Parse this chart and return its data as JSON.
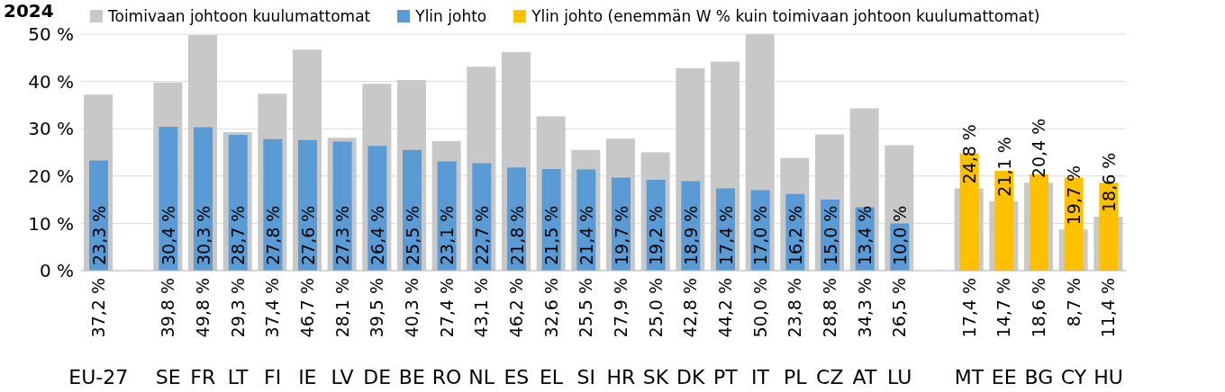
{
  "chart_data": {
    "type": "bar",
    "title": "2024",
    "categories": [
      "EU-27",
      null,
      "SE",
      "FR",
      "LT",
      "FI",
      "IE",
      "LV",
      "DE",
      "BE",
      "RO",
      "NL",
      "ES",
      "EL",
      "SI",
      "HR",
      "SK",
      "DK",
      "PT",
      "IT",
      "PL",
      "CZ",
      "AT",
      "LU",
      null,
      "MT",
      "EE",
      "BG",
      "CY",
      "HU"
    ],
    "series": [
      {
        "name": "Toimivaan johtoon kuulumattomat",
        "color": "#c8c8c8",
        "values": [
          37.2,
          null,
          39.8,
          49.8,
          29.3,
          37.4,
          46.7,
          28.1,
          39.5,
          40.3,
          27.4,
          43.1,
          46.2,
          32.6,
          25.5,
          27.9,
          25.0,
          42.8,
          44.2,
          50.0,
          23.8,
          28.8,
          34.3,
          26.5,
          null,
          17.4,
          14.7,
          18.6,
          8.7,
          11.4
        ],
        "value_labels": [
          "37,2 %",
          null,
          "39,8 %",
          "49,8 %",
          "29,3 %",
          "37,4 %",
          "46,7 %",
          "28,1 %",
          "39,5 %",
          "40,3 %",
          "27,4 %",
          "43,1 %",
          "46,2 %",
          "32,6 %",
          "25,5 %",
          "27,9 %",
          "25,0 %",
          "42,8 %",
          "44,2 %",
          "50,0 %",
          "23,8 %",
          "28,8 %",
          "34,3 %",
          "26,5 %",
          null,
          "17,4 %",
          "14,7 %",
          "18,6 %",
          "8,7 %",
          "11,4 %"
        ]
      },
      {
        "name": "Ylin johto",
        "color": "#5b9bd5",
        "values": [
          23.3,
          null,
          30.4,
          30.3,
          28.7,
          27.8,
          27.6,
          27.3,
          26.4,
          25.5,
          23.1,
          22.7,
          21.8,
          21.5,
          21.4,
          19.7,
          19.2,
          18.9,
          17.4,
          17.0,
          16.2,
          15.0,
          13.4,
          10.0,
          null,
          null,
          null,
          null,
          null,
          null
        ],
        "value_labels": [
          "23,3 %",
          null,
          "30,4 %",
          "30,3 %",
          "28,7 %",
          "27,8 %",
          "27,6 %",
          "27,3 %",
          "26,4 %",
          "25,5 %",
          "23,1 %",
          "22,7 %",
          "21,8 %",
          "21,5 %",
          "21,4 %",
          "19,7 %",
          "19,2 %",
          "18,9 %",
          "17,4 %",
          "17,0 %",
          "16,2 %",
          "15,0 %",
          "13,4 %",
          "10,0 %",
          null,
          null,
          null,
          null,
          null,
          null
        ]
      },
      {
        "name": "Ylin johto (enemmän W % kuin toimivaan johtoon kuulumattomat)",
        "color": "#ffc000",
        "values": [
          null,
          null,
          null,
          null,
          null,
          null,
          null,
          null,
          null,
          null,
          null,
          null,
          null,
          null,
          null,
          null,
          null,
          null,
          null,
          null,
          null,
          null,
          null,
          null,
          null,
          24.8,
          21.1,
          20.4,
          19.7,
          18.6
        ],
        "value_labels": [
          null,
          null,
          null,
          null,
          null,
          null,
          null,
          null,
          null,
          null,
          null,
          null,
          null,
          null,
          null,
          null,
          null,
          null,
          null,
          null,
          null,
          null,
          null,
          null,
          null,
          "24,8 %",
          "21,1 %",
          "20,4 %",
          "19,7 %",
          "18,6 %"
        ]
      }
    ],
    "ylim": [
      0,
      50
    ],
    "yticks": [
      {
        "value": 0,
        "label": "0 %"
      },
      {
        "value": 10,
        "label": "10 %"
      },
      {
        "value": 20,
        "label": "20 %"
      },
      {
        "value": 30,
        "label": "30 %"
      },
      {
        "value": 40,
        "label": "40 %"
      },
      {
        "value": 50,
        "label": "50 %"
      }
    ],
    "grid": "y",
    "legend": "top"
  }
}
